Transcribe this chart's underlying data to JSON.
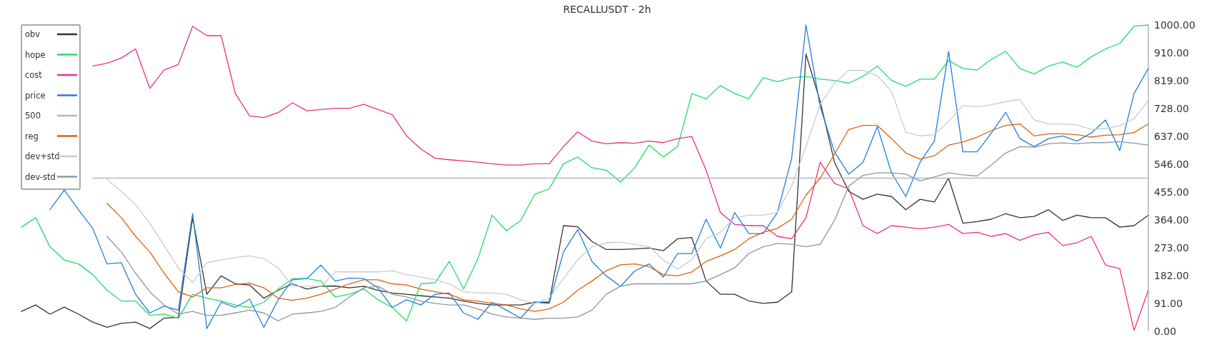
{
  "chart_data": {
    "type": "line",
    "title": "RECALLUSDT - 2h",
    "categories": [
      null,
      null,
      null,
      null,
      null,
      null,
      null,
      null,
      null,
      null,
      null,
      null,
      null,
      null,
      null,
      null,
      null,
      null,
      null,
      null,
      null,
      null,
      null,
      null,
      null,
      null,
      null,
      null,
      null,
      null,
      null,
      null,
      null,
      null,
      null,
      null,
      null,
      null,
      null,
      null,
      null,
      null,
      null,
      null,
      null,
      null,
      null,
      null,
      null,
      null,
      null,
      null,
      null,
      null,
      null,
      null,
      null,
      null,
      null,
      null,
      null,
      null,
      null,
      null,
      null,
      null,
      null,
      null,
      null,
      null,
      null,
      null,
      null,
      null,
      null,
      null,
      null,
      null,
      null,
      null
    ],
    "series": [
      {
        "name": "obv",
        "color": "#333333",
        "values": [
          65,
          86,
          56,
          79,
          56,
          30,
          13,
          26,
          30,
          9,
          43,
          45,
          371,
          121,
          181,
          155,
          151,
          108,
          134,
          155,
          138,
          147,
          148,
          142,
          147,
          134,
          125,
          121,
          116,
          112,
          108,
          99,
          91,
          86,
          86,
          86,
          95,
          95,
          345,
          341,
          293,
          267,
          267,
          269,
          272,
          263,
          302,
          306,
          164,
          121,
          121,
          99,
          91,
          95,
          129,
          905,
          750,
          552,
          457,
          431,
          448,
          440,
          397,
          431,
          422,
          500,
          353,
          358,
          366,
          384,
          371,
          375,
          397,
          362,
          379,
          371,
          371,
          340,
          345,
          379
        ]
      },
      {
        "name": "hope",
        "color": "#22dd66",
        "values": [
          340,
          371,
          276,
          233,
          220,
          185,
          134,
          99,
          99,
          52,
          56,
          43,
          121,
          108,
          99,
          86,
          78,
          95,
          138,
          172,
          172,
          164,
          112,
          121,
          138,
          103,
          78,
          34,
          155,
          159,
          228,
          138,
          237,
          379,
          328,
          362,
          448,
          465,
          547,
          569,
          534,
          526,
          487,
          534,
          608,
          569,
          603,
          776,
          759,
          802,
          776,
          759,
          828,
          815,
          828,
          832,
          823,
          819,
          810,
          832,
          866,
          819,
          800,
          823,
          823,
          884,
          858,
          853,
          888,
          914,
          858,
          840,
          866,
          879,
          862,
          896,
          922,
          940,
          996,
          1000
        ]
      },
      {
        "name": "cost",
        "color": "#e8308a",
        "values": [
          null,
          null,
          null,
          null,
          null,
          866,
          875,
          892,
          922,
          793,
          853,
          871,
          996,
          965,
          965,
          776,
          703,
          698,
          714,
          746,
          720,
          724,
          728,
          728,
          741,
          724,
          707,
          638,
          595,
          565,
          560,
          556,
          552,
          547,
          543,
          543,
          547,
          547,
          603,
          651,
          621,
          612,
          616,
          614,
          621,
          616,
          629,
          636,
          526,
          388,
          349,
          345,
          345,
          310,
          302,
          371,
          552,
          483,
          465,
          345,
          319,
          345,
          340,
          334,
          340,
          349,
          319,
          323,
          310,
          319,
          297,
          315,
          323,
          280,
          289,
          310,
          216,
          205,
          3,
          134
        ]
      },
      {
        "name": "price",
        "color": "#1f7fe0",
        "values": [
          null,
          null,
          397,
          461,
          397,
          336,
          220,
          224,
          121,
          60,
          82,
          69,
          384,
          9,
          95,
          78,
          105,
          13,
          103,
          168,
          172,
          216,
          164,
          174,
          172,
          142,
          78,
          103,
          86,
          121,
          125,
          60,
          39,
          95,
          69,
          43,
          95,
          91,
          259,
          332,
          228,
          181,
          147,
          197,
          220,
          177,
          254,
          254,
          366,
          272,
          388,
          319,
          319,
          388,
          565,
          1000,
          733,
          586,
          513,
          552,
          668,
          517,
          440,
          552,
          621,
          914,
          586,
          586,
          647,
          715,
          629,
          603,
          629,
          638,
          621,
          647,
          690,
          590,
          776,
          858
        ]
      },
      {
        "name": "500",
        "color": "#b8b8b8",
        "values": [
          null,
          null,
          null,
          null,
          null,
          500,
          500,
          500,
          500,
          500,
          500,
          500,
          500,
          500,
          500,
          500,
          500,
          500,
          500,
          500,
          500,
          500,
          500,
          500,
          500,
          500,
          500,
          500,
          500,
          500,
          500,
          500,
          500,
          500,
          500,
          500,
          500,
          500,
          500,
          500,
          500,
          500,
          500,
          500,
          500,
          500,
          500,
          500,
          500,
          500,
          500,
          500,
          500,
          500,
          500,
          500,
          500,
          500,
          500,
          500,
          500,
          500,
          500,
          500,
          500,
          500,
          500,
          500,
          500,
          500,
          500,
          500,
          500,
          500,
          500,
          500,
          500,
          500,
          500,
          500
        ]
      },
      {
        "name": "reg",
        "color": "#e06010",
        "values": [
          null,
          null,
          null,
          null,
          null,
          null,
          418,
          371,
          310,
          259,
          190,
          129,
          112,
          142,
          142,
          153,
          157,
          142,
          108,
          101,
          108,
          121,
          138,
          155,
          168,
          168,
          155,
          151,
          138,
          129,
          121,
          103,
          99,
          91,
          86,
          73,
          65,
          73,
          95,
          134,
          164,
          198,
          217,
          220,
          211,
          185,
          181,
          194,
          228,
          246,
          267,
          302,
          323,
          336,
          366,
          444,
          500,
          578,
          659,
          672,
          672,
          629,
          582,
          562,
          573,
          608,
          618,
          634,
          655,
          672,
          677,
          638,
          645,
          645,
          642,
          634,
          640,
          642,
          649,
          677
        ]
      },
      {
        "name": "dev+std",
        "color": "#c5ccd3",
        "values": [
          null,
          null,
          null,
          null,
          null,
          null,
          496,
          457,
          414,
          353,
          280,
          207,
          159,
          224,
          233,
          241,
          246,
          237,
          207,
          147,
          147,
          147,
          194,
          194,
          194,
          194,
          198,
          185,
          177,
          168,
          155,
          129,
          125,
          125,
          121,
          103,
          91,
          108,
          172,
          233,
          276,
          289,
          291,
          284,
          276,
          233,
          203,
          233,
          302,
          323,
          371,
          379,
          379,
          388,
          474,
          603,
          741,
          810,
          852,
          852,
          834,
          784,
          650,
          638,
          642,
          685,
          737,
          733,
          740,
          750,
          757,
          690,
          677,
          677,
          674,
          659,
          662,
          671,
          694,
          754
        ]
      },
      {
        "name": "dev-std",
        "color": "#8b98a2",
        "values": [
          null,
          null,
          null,
          null,
          null,
          null,
          310,
          259,
          190,
          129,
          86,
          56,
          65,
          52,
          52,
          60,
          69,
          60,
          34,
          56,
          60,
          65,
          78,
          112,
          142,
          147,
          121,
          112,
          99,
          91,
          86,
          86,
          73,
          56,
          47,
          43,
          39,
          43,
          43,
          47,
          69,
          121,
          147,
          155,
          155,
          155,
          155,
          155,
          164,
          185,
          207,
          254,
          276,
          287,
          284,
          276,
          284,
          362,
          474,
          509,
          517,
          517,
          513,
          491,
          504,
          517,
          511,
          507,
          543,
          582,
          603,
          601,
          612,
          615,
          612,
          616,
          616,
          619,
          614,
          608
        ]
      }
    ],
    "ylim": [
      0,
      1000
    ],
    "yticks": [
      {
        "value": 0,
        "label": "0.00"
      },
      {
        "value": 91,
        "label": "91.00"
      },
      {
        "value": 182,
        "label": "182.00"
      },
      {
        "value": 273,
        "label": "273.00"
      },
      {
        "value": 364,
        "label": "364.00"
      },
      {
        "value": 455,
        "label": "455.00"
      },
      {
        "value": 546,
        "label": "546.00"
      },
      {
        "value": 637,
        "label": "637.00"
      },
      {
        "value": 728,
        "label": "728.00"
      },
      {
        "value": 819,
        "label": "819.00"
      },
      {
        "value": 910,
        "label": "910.00"
      },
      {
        "value": 1000,
        "label": "1000.00"
      }
    ],
    "tick_labels": "y",
    "legend": "top left"
  }
}
